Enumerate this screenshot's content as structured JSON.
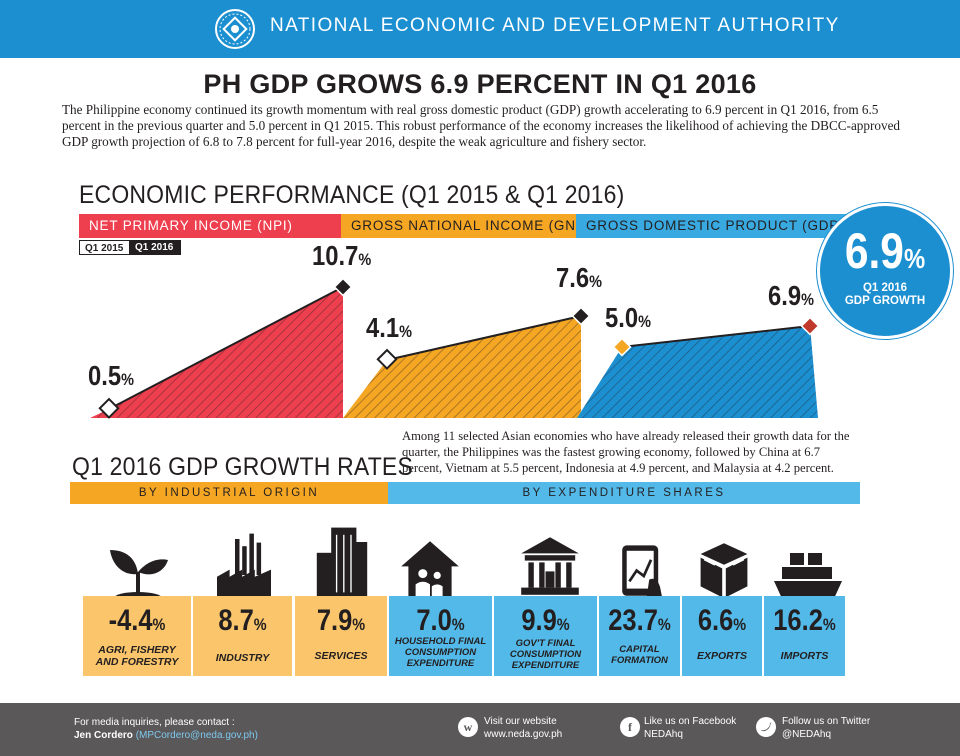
{
  "header": {
    "org_name": "NATIONAL ECONOMIC AND DEVELOPMENT AUTHORITY",
    "logo_icon": "neda-seal-icon"
  },
  "title": "PH GDP GROWS 6.9 PERCENT IN Q1 2016",
  "intro": "The Philippine economy continued its growth momentum with real gross domestic product (GDP) growth accelerating to 6.9 percent in Q1 2016, from 6.5 percent in the previous quarter and 5.0 percent in Q1 2015. This robust performance of the economy increases the likelihood of achieving the DBCC-approved GDP growth projection of 6.8 to 7.8 percent for full-year 2016, despite the weak agriculture and fishery sector.",
  "performance": {
    "title": "ECONOMIC PERFORMANCE (Q1 2015 & Q1 2016)",
    "legend": [
      "Q1 2015",
      "Q1 2016"
    ],
    "bands": [
      "NET PRIMARY INCOME (NPI)",
      "GROSS NATIONAL INCOME (GNI)",
      "GROSS DOMESTIC PRODUCT (GDP)"
    ],
    "pct_sign": "%",
    "npi": {
      "q1_2015": "0.5",
      "q1_2016": "10.7"
    },
    "gni": {
      "q1_2015": "4.1",
      "q1_2016": "7.6"
    },
    "gdp": {
      "q1_2015": "5.0",
      "q1_2016": "6.9"
    },
    "colors": {
      "npi": "#ee3f4e",
      "gni": "#f5a623",
      "gdp": "#1c8fd1"
    }
  },
  "badge": {
    "value": "6.9",
    "pct": "%",
    "line1": "Q1 2016",
    "line2": "GDP GROWTH"
  },
  "growth": {
    "title": "Q1 2016 GDP GROWTH RATES",
    "asia_text": "Among 11 selected Asian economies who have already released their growth data for the quarter, the Philippines was the fastest growing economy, followed by China at 6.7 percent, Vietnam at 5.5 percent, Indonesia at 4.9 percent, and Malaysia at 4.2 percent.",
    "band_industrial": "BY INDUSTRIAL ORIGIN",
    "band_expenditure": "BY EXPENDITURE SHARES",
    "items": [
      {
        "value": "-4.4",
        "label1": "AGRI, FISHERY",
        "label2": "AND FORESTRY",
        "label3": "",
        "icon": "plant-sprout-icon"
      },
      {
        "value": "8.7",
        "label1": "INDUSTRY",
        "label2": "",
        "label3": "",
        "icon": "factory-icon"
      },
      {
        "value": "7.9",
        "label1": "SERVICES",
        "label2": "",
        "label3": "",
        "icon": "office-building-icon"
      },
      {
        "value": "7.0",
        "label1": "HOUSEHOLD FINAL",
        "label2": "CONSUMPTION",
        "label3": "EXPENDITURE",
        "icon": "family-house-icon"
      },
      {
        "value": "9.9",
        "label1": "GOV'T FINAL",
        "label2": "CONSUMPTION",
        "label3": "EXPENDITURE",
        "icon": "government-building-icon"
      },
      {
        "value": "23.7",
        "label1": "CAPITAL",
        "label2": "FORMATION",
        "label3": "",
        "icon": "tablet-chart-icon"
      },
      {
        "value": "6.6",
        "label1": "EXPORTS",
        "label2": "",
        "label3": "",
        "icon": "cargo-box-icon"
      },
      {
        "value": "16.2",
        "label1": "IMPORTS",
        "label2": "",
        "label3": "",
        "icon": "cargo-ship-icon"
      }
    ]
  },
  "footer": {
    "media_label": "For media inquiries, please contact :",
    "contact_name": "Jen Cordero",
    "contact_email": "(MPCordero@neda.gov.ph)",
    "website_label": "Visit our website",
    "website": "www.neda.gov.ph",
    "facebook_label": "Like us on Facebook",
    "facebook": "NEDAhq",
    "twitter_label": "Follow us on Twitter",
    "twitter": "@NEDAhq",
    "website_icon": "w",
    "facebook_icon": "f"
  }
}
